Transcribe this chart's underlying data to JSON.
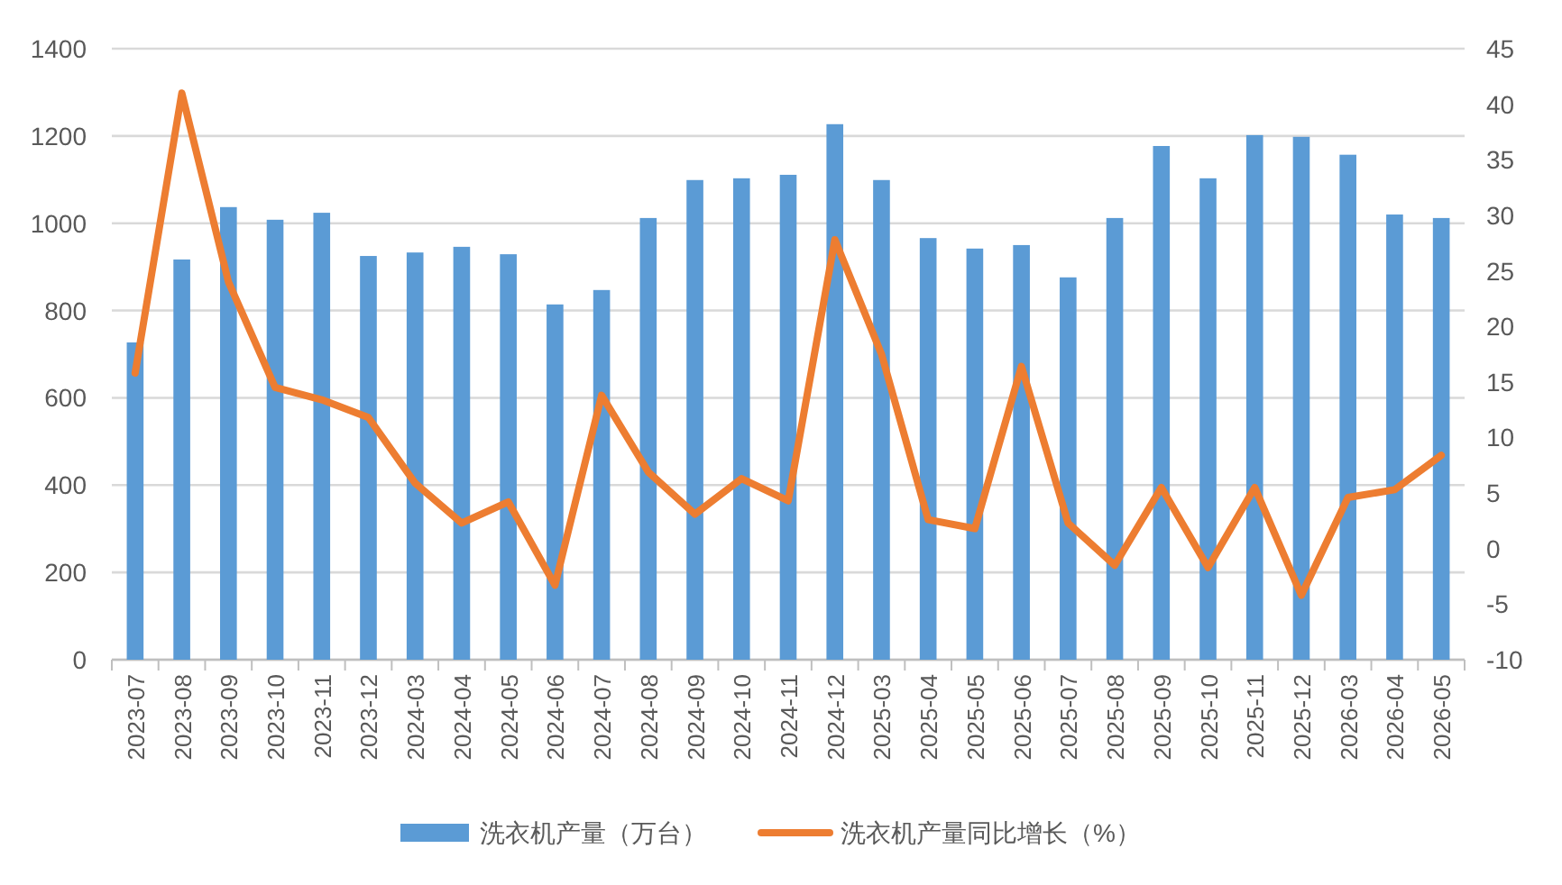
{
  "chart_data": {
    "type": "bar",
    "categories": [
      "2023-07",
      "2023-08",
      "2023-09",
      "2023-10",
      "2023-11",
      "2023-12",
      "2024-03",
      "2024-04",
      "2024-05",
      "2024-06",
      "2024-07",
      "2024-08",
      "2024-09",
      "2024-10",
      "2024-11",
      "2024-12",
      "2025-03",
      "2025-04",
      "2025-05",
      "2025-06",
      "2025-07",
      "2025-08",
      "2025-09",
      "2025-10",
      "2025-11",
      "2025-12",
      "2026-03",
      "2026-04",
      "2026-05"
    ],
    "series": [
      {
        "name": "洗衣机产量（万台）",
        "color": "#5b9bd5",
        "values": [
          727,
          917,
          1037,
          1008,
          1024,
          925,
          933,
          946,
          929,
          814,
          847,
          1012,
          1099,
          1103,
          1111,
          1227,
          1099,
          966,
          942,
          950,
          876,
          1012,
          1177,
          1103,
          1202,
          1198,
          1157,
          1020,
          1012
        ]
      },
      {
        "name": "洗衣机产量同比增长（%）",
        "type": "line",
        "axis": "y2",
        "color": "#ed7d31",
        "values": [
          15.8,
          41.0,
          24.0,
          14.5,
          13.4,
          11.8,
          5.9,
          2.3,
          4.2,
          -3.3,
          13.8,
          6.9,
          3.1,
          6.3,
          4.3,
          27.8,
          17.5,
          2.6,
          1.8,
          16.4,
          2.3,
          -1.5,
          5.5,
          -1.7,
          5.5,
          -4.2,
          4.6,
          5.3,
          8.4
        ]
      }
    ],
    "ylim": [
      0,
      1400
    ],
    "yticks": [
      0,
      200,
      400,
      600,
      800,
      1000,
      1200,
      1400
    ],
    "y2lim": [
      -10,
      45
    ],
    "y2ticks": [
      -10,
      -5,
      0,
      5,
      10,
      15,
      20,
      25,
      30,
      35,
      40,
      45
    ],
    "grid": "y",
    "legend": "bottom",
    "marker": "none",
    "line_style": "solid"
  }
}
